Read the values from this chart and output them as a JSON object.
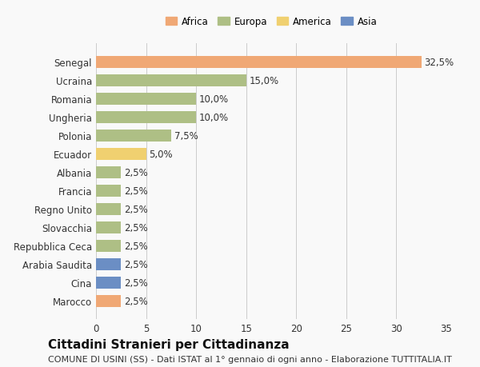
{
  "countries": [
    "Senegal",
    "Ucraina",
    "Romania",
    "Ungheria",
    "Polonia",
    "Ecuador",
    "Albania",
    "Francia",
    "Regno Unito",
    "Slovacchia",
    "Repubblica Ceca",
    "Arabia Saudita",
    "Cina",
    "Marocco"
  ],
  "values": [
    32.5,
    15.0,
    10.0,
    10.0,
    7.5,
    5.0,
    2.5,
    2.5,
    2.5,
    2.5,
    2.5,
    2.5,
    2.5,
    2.5
  ],
  "continents": [
    "Africa",
    "Europa",
    "Europa",
    "Europa",
    "Europa",
    "America",
    "Europa",
    "Europa",
    "Europa",
    "Europa",
    "Europa",
    "Asia",
    "Asia",
    "Africa"
  ],
  "colors": {
    "Africa": "#F0A875",
    "Europa": "#AEBF85",
    "America": "#F0D070",
    "Asia": "#6B8EC4"
  },
  "legend_order": [
    "Africa",
    "Europa",
    "America",
    "Asia"
  ],
  "xlim": [
    0,
    35
  ],
  "xticks": [
    0,
    5,
    10,
    15,
    20,
    25,
    30,
    35
  ],
  "title": "Cittadini Stranieri per Cittadinanza",
  "subtitle": "COMUNE DI USINI (SS) - Dati ISTAT al 1° gennaio di ogni anno - Elaborazione TUTTITALIA.IT",
  "bg_color": "#f9f9f9",
  "bar_height": 0.65,
  "label_fontsize": 8.5,
  "tick_fontsize": 8.5,
  "title_fontsize": 11,
  "subtitle_fontsize": 8
}
